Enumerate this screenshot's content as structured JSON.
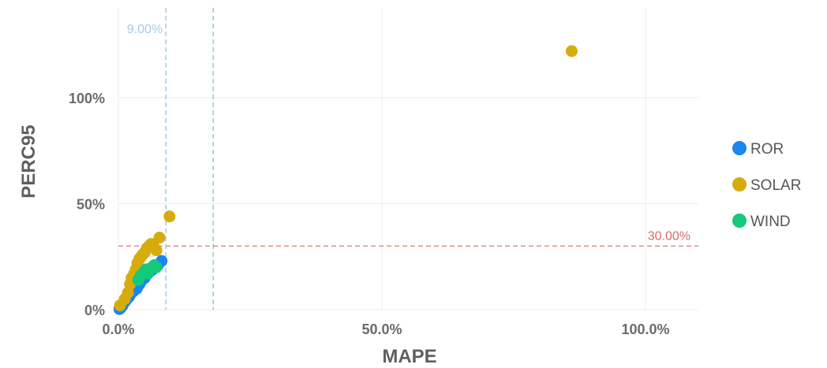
{
  "chart_data": {
    "type": "scatter",
    "xlabel": "MAPE",
    "ylabel": "PERC95",
    "xlim": [
      0,
      1.1
    ],
    "ylim": [
      0,
      1.4
    ],
    "x_ticks": [
      {
        "value": 0,
        "label": "0.0%"
      },
      {
        "value": 0.5,
        "label": "50.0%"
      },
      {
        "value": 1.0,
        "label": "100.0%"
      }
    ],
    "y_ticks": [
      {
        "value": 0,
        "label": "0%"
      },
      {
        "value": 0.5,
        "label": "50%"
      },
      {
        "value": 1.0,
        "label": "100%"
      }
    ],
    "grid": true,
    "legend_position": "right",
    "reference_lines": [
      {
        "axis": "x",
        "value": 0.09,
        "label": "9.00%",
        "color": "#9ecbee"
      },
      {
        "axis": "x",
        "value": 0.18,
        "label": "",
        "color": "#7ed9a6"
      },
      {
        "axis": "y",
        "value": 0.3,
        "label": "30.00%",
        "color": "#e88a8a"
      }
    ],
    "series": [
      {
        "name": "ROR",
        "color": "#1a86f0",
        "points": [
          [
            0.002,
            0.003
          ],
          [
            0.005,
            0.01
          ],
          [
            0.008,
            0.02
          ],
          [
            0.01,
            0.03
          ],
          [
            0.013,
            0.04
          ],
          [
            0.016,
            0.05
          ],
          [
            0.02,
            0.06
          ],
          [
            0.022,
            0.07
          ],
          [
            0.025,
            0.08
          ],
          [
            0.03,
            0.09
          ],
          [
            0.035,
            0.1
          ],
          [
            0.04,
            0.12
          ],
          [
            0.045,
            0.14
          ],
          [
            0.05,
            0.15
          ],
          [
            0.055,
            0.17
          ],
          [
            0.06,
            0.18
          ],
          [
            0.065,
            0.19
          ],
          [
            0.07,
            0.2
          ],
          [
            0.075,
            0.21
          ],
          [
            0.082,
            0.23
          ]
        ]
      },
      {
        "name": "SOLAR",
        "color": "#d6ac0c",
        "points": [
          [
            0.003,
            0.02
          ],
          [
            0.012,
            0.05
          ],
          [
            0.018,
            0.08
          ],
          [
            0.022,
            0.12
          ],
          [
            0.025,
            0.15
          ],
          [
            0.03,
            0.17
          ],
          [
            0.033,
            0.19
          ],
          [
            0.036,
            0.22
          ],
          [
            0.04,
            0.24
          ],
          [
            0.043,
            0.25
          ],
          [
            0.046,
            0.26
          ],
          [
            0.05,
            0.27
          ],
          [
            0.054,
            0.29
          ],
          [
            0.058,
            0.3
          ],
          [
            0.062,
            0.31
          ],
          [
            0.067,
            0.3
          ],
          [
            0.072,
            0.28
          ],
          [
            0.078,
            0.34
          ],
          [
            0.097,
            0.44
          ],
          [
            0.86,
            1.22
          ]
        ]
      },
      {
        "name": "WIND",
        "color": "#14c97a",
        "points": [
          [
            0.038,
            0.14
          ],
          [
            0.042,
            0.16
          ],
          [
            0.046,
            0.17
          ],
          [
            0.05,
            0.18
          ],
          [
            0.052,
            0.19
          ],
          [
            0.056,
            0.17
          ],
          [
            0.06,
            0.19
          ],
          [
            0.064,
            0.2
          ],
          [
            0.068,
            0.21
          ],
          [
            0.072,
            0.2
          ]
        ]
      }
    ]
  },
  "colors": {
    "grid": "#ececec",
    "tick_text": "#6b6b6b",
    "axis_title": "#5f5f5f"
  }
}
